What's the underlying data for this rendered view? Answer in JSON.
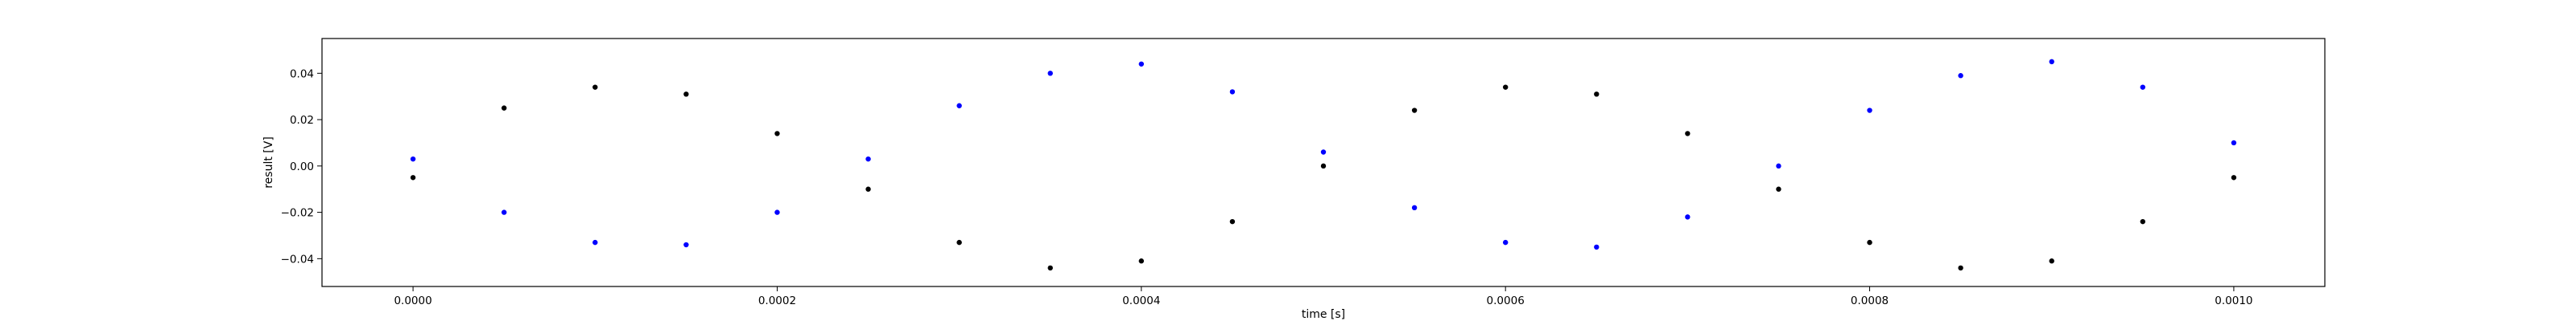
{
  "chart_data": {
    "type": "scatter",
    "xlabel": "time [s]",
    "ylabel": "result [V]",
    "xlim": [
      -5e-05,
      0.00105
    ],
    "ylim": [
      -0.052,
      0.055
    ],
    "x_ticks": [
      "0.0000",
      "0.0002",
      "0.0004",
      "0.0006",
      "0.0008",
      "0.0010"
    ],
    "x_tick_values": [
      0,
      0.0002,
      0.0004,
      0.0006,
      0.0008,
      0.001
    ],
    "y_ticks": [
      "−0.04",
      "−0.02",
      "0.00",
      "0.02",
      "0.04"
    ],
    "y_tick_values": [
      -0.04,
      -0.02,
      0,
      0.02,
      0.04
    ],
    "grid": false,
    "series": [
      {
        "color": "#000000",
        "x": [
          0,
          5e-05,
          0.0001,
          0.00015,
          0.0002,
          0.00025,
          0.0003,
          0.00035,
          0.0004,
          0.00045,
          0.0005,
          0.00055,
          0.0006,
          0.00065,
          0.0007,
          0.00075,
          0.0008,
          0.00085,
          0.0009,
          0.00095,
          0.001
        ],
        "y": [
          -0.005,
          0.025,
          0.034,
          0.031,
          0.014,
          -0.01,
          -0.033,
          -0.044,
          -0.041,
          -0.024,
          0.0,
          0.024,
          0.034,
          0.031,
          0.014,
          -0.01,
          -0.033,
          -0.044,
          -0.041,
          -0.024,
          -0.005
        ]
      },
      {
        "color": "#0000ff",
        "x": [
          0,
          5e-05,
          0.0001,
          0.00015,
          0.0002,
          0.00025,
          0.0003,
          0.00035,
          0.0004,
          0.00045,
          0.0005,
          0.00055,
          0.0006,
          0.00065,
          0.0007,
          0.00075,
          0.0008,
          0.00085,
          0.0009,
          0.00095,
          0.001
        ],
        "y": [
          0.003,
          -0.02,
          -0.033,
          -0.034,
          -0.02,
          0.003,
          0.026,
          0.04,
          0.044,
          0.032,
          0.006,
          -0.018,
          -0.033,
          -0.035,
          -0.022,
          0.0,
          0.024,
          0.039,
          0.045,
          0.034,
          0.01
        ]
      }
    ]
  }
}
